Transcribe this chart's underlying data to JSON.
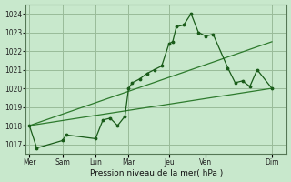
{
  "bg_color": "#c8e8cc",
  "grid_color": "#99bb99",
  "line_color": "#1a5c1a",
  "line_color2": "#2d7a2d",
  "xlabel": "Pression niveau de la mer( hPa )",
  "ylim": [
    1016.5,
    1024.5
  ],
  "yticks": [
    1017,
    1018,
    1019,
    1020,
    1021,
    1022,
    1023,
    1024
  ],
  "days": [
    "Mer",
    "Sam",
    "Lun",
    "Mar",
    "Jeu",
    "Ven",
    "Dim"
  ],
  "day_positions": [
    0,
    4.5,
    9,
    13.5,
    19,
    24,
    33
  ],
  "xlim": [
    -0.5,
    35
  ],
  "series1_x": [
    0,
    1,
    4.5,
    5,
    9,
    10,
    11,
    12,
    13,
    13.5,
    14,
    15,
    16,
    17,
    18,
    19,
    19.5,
    20,
    21,
    22,
    23,
    24,
    25,
    27,
    28,
    29,
    30,
    31,
    33
  ],
  "series1_y": [
    1018.0,
    1016.8,
    1017.2,
    1017.5,
    1017.3,
    1018.3,
    1018.4,
    1018.0,
    1018.5,
    1020.0,
    1020.3,
    1020.5,
    1020.8,
    1021.0,
    1021.2,
    1022.4,
    1022.5,
    1023.3,
    1023.4,
    1024.0,
    1023.0,
    1022.8,
    1022.9,
    1021.1,
    1020.3,
    1020.4,
    1020.1,
    1021.0,
    1020.0
  ],
  "series2_x": [
    0,
    33
  ],
  "series2_y": [
    1018.0,
    1022.5
  ],
  "series3_x": [
    0,
    33
  ],
  "series3_y": [
    1018.0,
    1020.0
  ]
}
